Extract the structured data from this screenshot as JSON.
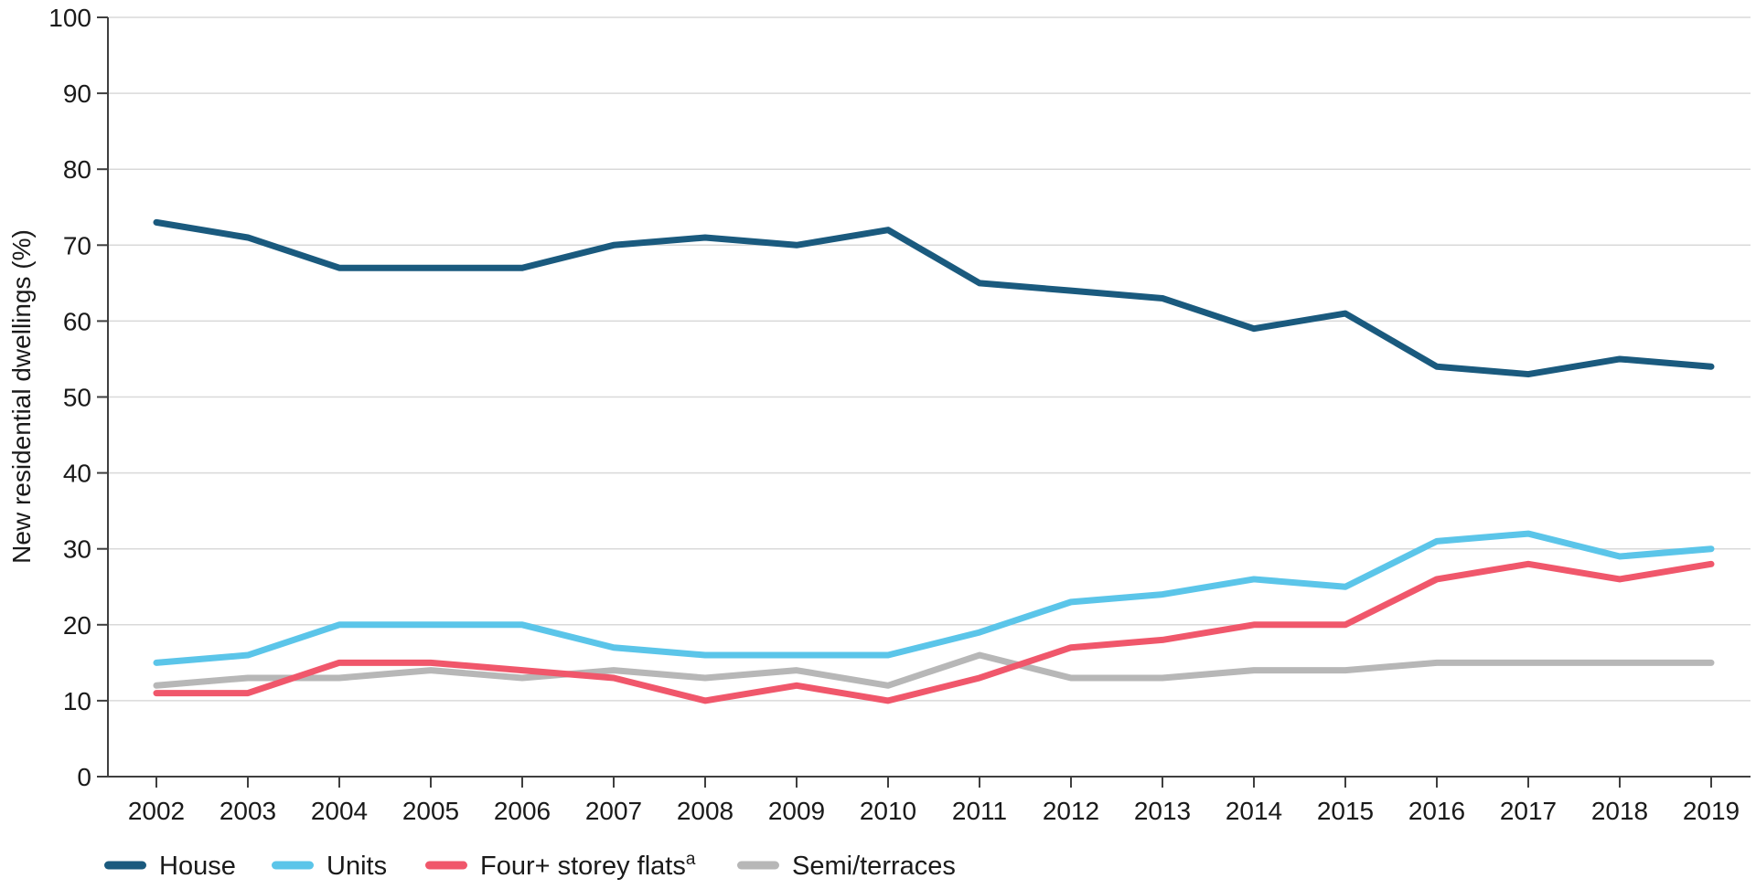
{
  "chart_data": {
    "type": "line",
    "title": "",
    "xlabel": "",
    "ylabel": "New residential dwellings (%)",
    "ylim": [
      0,
      100
    ],
    "ytick_step": 10,
    "yticks": [
      0,
      10,
      20,
      30,
      40,
      50,
      60,
      70,
      80,
      90,
      100
    ],
    "grid": "horizontal",
    "legend_position": "bottom-left",
    "categories": [
      "2002",
      "2003",
      "2004",
      "2005",
      "2006",
      "2007",
      "2008",
      "2009",
      "2010",
      "2011",
      "2012",
      "2013",
      "2014",
      "2015",
      "2016",
      "2017",
      "2018",
      "2019"
    ],
    "series": [
      {
        "name": "House",
        "color": "#1a5a7e",
        "values": [
          73,
          71,
          67,
          67,
          67,
          70,
          71,
          70,
          72,
          65,
          64,
          63,
          59,
          61,
          54,
          53,
          55,
          54
        ]
      },
      {
        "name": "Units",
        "color": "#5bc5e9",
        "values": [
          15,
          16,
          20,
          20,
          20,
          17,
          16,
          16,
          16,
          19,
          23,
          24,
          26,
          25,
          31,
          32,
          29,
          30
        ]
      },
      {
        "name": "Four+ storey flats",
        "sup": "a",
        "color": "#f0576b",
        "values": [
          11,
          11,
          15,
          15,
          14,
          13,
          10,
          12,
          10,
          13,
          17,
          18,
          20,
          20,
          26,
          28,
          26,
          28
        ]
      },
      {
        "name": "Semi/terraces",
        "color": "#b7b7b7",
        "values": [
          12,
          13,
          13,
          14,
          13,
          14,
          13,
          14,
          12,
          16,
          13,
          13,
          14,
          14,
          15,
          15,
          15,
          15
        ]
      }
    ],
    "colors": {
      "gridline": "#d9d9d9",
      "axis": "#3f3f3f",
      "text": "#1a1a1a"
    }
  }
}
